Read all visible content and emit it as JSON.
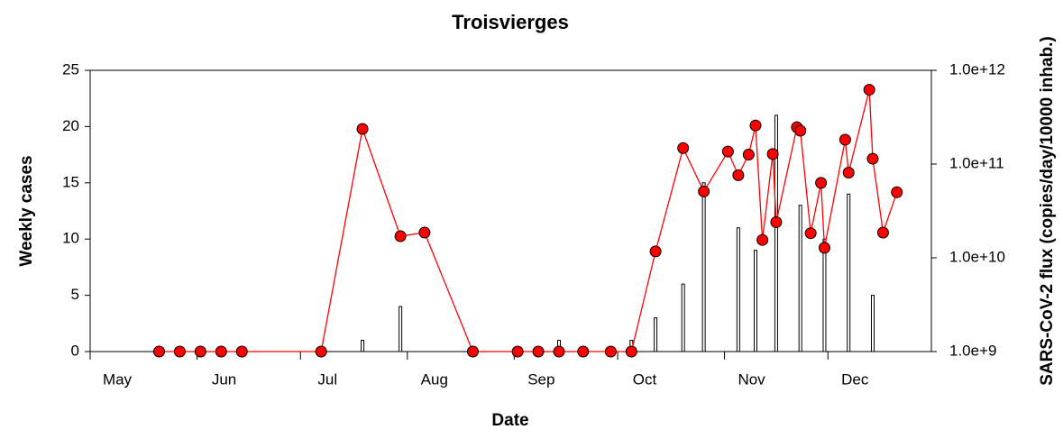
{
  "chart_data": {
    "type": "combo",
    "title": "Troisvierges",
    "xlabel": "Date",
    "ylabel": "Weekly cases",
    "y2label": "SARS-CoV-2 flux (copies/day/10000 inhab.)",
    "xlim": [
      122,
      366
    ],
    "xticks": [
      {
        "value": 122,
        "label": "May"
      },
      {
        "value": 153,
        "label": "Jun"
      },
      {
        "value": 183,
        "label": "Jul"
      },
      {
        "value": 214,
        "label": "Aug"
      },
      {
        "value": 245,
        "label": "Sep"
      },
      {
        "value": 275,
        "label": "Oct"
      },
      {
        "value": 306,
        "label": "Nov"
      },
      {
        "value": 336,
        "label": "Dec"
      }
    ],
    "ylim": [
      0,
      25
    ],
    "yticks": [
      0,
      5,
      10,
      15,
      20,
      25
    ],
    "y2lim": [
      1000000000.0,
      1000000000000.0
    ],
    "y2scale": "log",
    "y2ticks": [
      {
        "value": 1000000000.0,
        "label": "1.0e+9"
      },
      {
        "value": 10000000000.0,
        "label": "1.0e+10"
      },
      {
        "value": 100000000000.0,
        "label": "1.0e+11"
      },
      {
        "value": 1000000000000.0,
        "label": "1.0e+12"
      }
    ],
    "series": [
      {
        "type": "bar",
        "color": "#ffffff",
        "edgecolor": "#000000",
        "x": [
          201,
          212,
          258,
          279,
          286,
          294,
          300,
          310,
          315,
          321,
          328,
          335,
          342,
          349
        ],
        "values": [
          1,
          4,
          1,
          1,
          3,
          6,
          15,
          11,
          9,
          21,
          13,
          10,
          14,
          5
        ]
      },
      {
        "type": "line",
        "color": "#ff0000",
        "axis": "y2",
        "x": [
          142,
          148,
          154,
          160,
          166,
          189,
          201,
          212,
          219,
          233,
          246,
          252,
          258,
          265,
          273,
          279,
          286,
          294,
          300,
          307,
          310,
          313,
          315,
          317,
          320,
          321,
          327,
          328,
          331,
          334,
          335,
          341,
          342,
          348,
          349,
          352,
          356
        ],
        "values": [
          1000000000.0,
          1000000000.0,
          1000000000.0,
          1000000000.0,
          1000000000.0,
          1000000000.0,
          237000000000.0,
          17000000000.0,
          18600000000.0,
          1000000000.0,
          1000000000.0,
          1000000000.0,
          1000000000.0,
          1000000000.0,
          1000000000.0,
          1000000000.0,
          11700000000.0,
          148000000000.0,
          51000000000.0,
          136000000000.0,
          76000000000.0,
          126000000000.0,
          258000000000.0,
          15500000000.0,
          128000000000.0,
          24000000000.0,
          247000000000.0,
          227000000000.0,
          18300000000.0,
          63000000000.0,
          12800000000.0,
          182000000000.0,
          81000000000.0,
          620000000000.0,
          114000000000.0,
          18600000000.0,
          50000000000.0
        ]
      }
    ]
  }
}
